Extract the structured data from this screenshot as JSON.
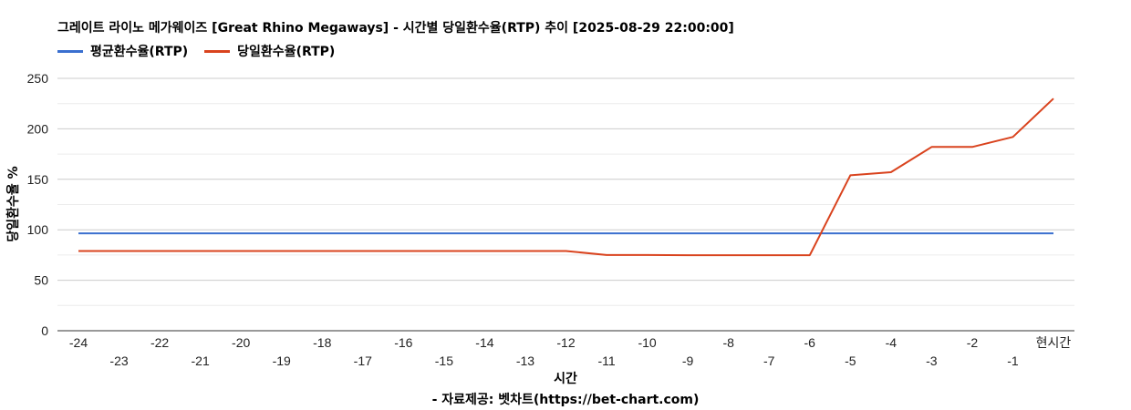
{
  "chart_data": {
    "type": "line",
    "title": "그레이트 라이노 메가웨이즈 [Great Rhino Megaways] - 시간별 당일환수율(RTP) 추이 [2025-08-29 22:00:00]",
    "xlabel": "시간",
    "ylabel": "당일환수율 %",
    "categories": [
      "-24",
      "-23",
      "-22",
      "-21",
      "-20",
      "-19",
      "-18",
      "-17",
      "-16",
      "-15",
      "-14",
      "-13",
      "-12",
      "-11",
      "-10",
      "-9",
      "-8",
      "-7",
      "-6",
      "-5",
      "-4",
      "-3",
      "-2",
      "-1",
      "현시간"
    ],
    "series": [
      {
        "name": "평균환수율(RTP)",
        "color": "#3a6fcf",
        "values": [
          96.5,
          96.5,
          96.5,
          96.5,
          96.5,
          96.5,
          96.5,
          96.5,
          96.5,
          96.5,
          96.5,
          96.5,
          96.5,
          96.5,
          96.5,
          96.5,
          96.5,
          96.5,
          96.5,
          96.5,
          96.5,
          96.5,
          96.5,
          96.5,
          96.5
        ]
      },
      {
        "name": "당일환수율(RTP)",
        "color": "#d9431e",
        "values": [
          79,
          79,
          79,
          79,
          79,
          79,
          79,
          79,
          79,
          79,
          79,
          79,
          79,
          75,
          75,
          74.8,
          74.8,
          74.8,
          74.8,
          154,
          157,
          182,
          182,
          192,
          230
        ]
      }
    ],
    "ylim": [
      0,
      250
    ],
    "yticks": [
      0,
      50,
      100,
      150,
      200,
      250
    ],
    "grid": true,
    "legend_position": "top-left",
    "source": "- 자료제공: 벳차트(https://bet-chart.com)"
  }
}
